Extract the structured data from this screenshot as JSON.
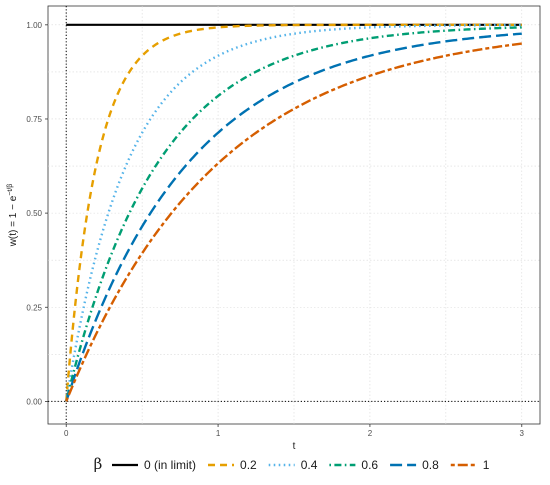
{
  "chart_data": {
    "type": "line",
    "xlabel": "t",
    "ylabel_text": "w(t) = 1 − e",
    "ylabel_superscript": "−t/β",
    "xlim": [
      -0.12,
      3.12
    ],
    "ylim": [
      -0.06,
      1.05
    ],
    "x_ticks": [
      0,
      1,
      2,
      3
    ],
    "x_tick_labels": [
      "0",
      "1",
      "2",
      "3"
    ],
    "y_ticks": [
      0,
      0.25,
      0.5,
      0.75,
      1
    ],
    "y_tick_labels": [
      "0.00",
      "0.25",
      "0.50",
      "0.75",
      "1.00"
    ],
    "grid": true,
    "reference_lines": {
      "x": 0,
      "y": 0
    },
    "legend": {
      "title": "β",
      "placement": "bottom"
    },
    "function": "1 - exp(-t/beta)",
    "t_range": [
      0,
      3
    ],
    "series": [
      {
        "name": "0 (in limit)",
        "beta": 0,
        "color": "#000000",
        "dash": "solid"
      },
      {
        "name": "0.2",
        "beta": 0.2,
        "color": "#E69F00",
        "dash": "dashed"
      },
      {
        "name": "0.4",
        "beta": 0.4,
        "color": "#56B4E9",
        "dash": "dotted"
      },
      {
        "name": "0.6",
        "beta": 0.6,
        "color": "#009E73",
        "dash": "dotdash"
      },
      {
        "name": "0.8",
        "beta": 0.8,
        "color": "#0072B2",
        "dash": "longdash"
      },
      {
        "name": "1",
        "beta": 1,
        "color": "#D55E00",
        "dash": "twodash"
      }
    ]
  }
}
